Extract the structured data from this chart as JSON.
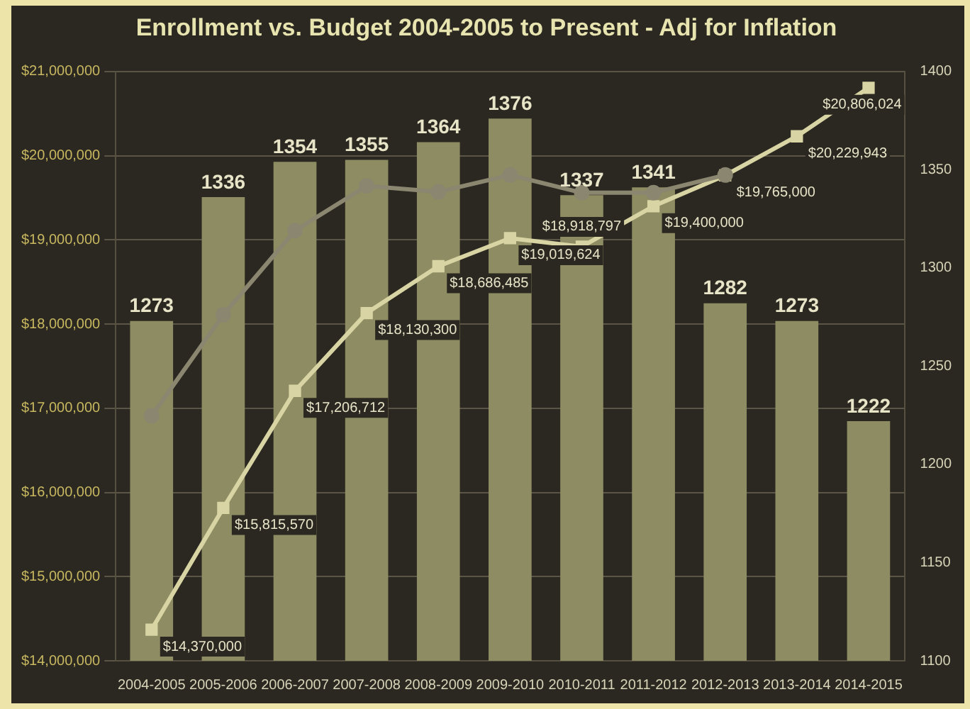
{
  "chart_data": {
    "type": "bar",
    "title": "Enrollment vs. Budget 2004-2005 to Present - Adj for Inflation",
    "categories": [
      "2004-2005",
      "2005-2006",
      "2006-2007",
      "2007-2008",
      "2008-2009",
      "2009-2010",
      "2010-2011",
      "2011-2012",
      "2012-2013",
      "2013-2014",
      "2014-2015"
    ],
    "series": [
      {
        "axis": "y2",
        "color": "#8e8c62",
        "values": [
          1273,
          1336,
          1354,
          1355,
          1364,
          1376,
          1337,
          1341,
          1282,
          1273,
          1222
        ],
        "value_labels": [
          "1273",
          "1336",
          "1354",
          "1355",
          "1364",
          "1376",
          "1337",
          "1341",
          "1282",
          "1273",
          "1222"
        ]
      },
      {
        "type": "line",
        "axis": "y",
        "color": "#8a8670",
        "marker": "circle",
        "values": [
          16910000,
          18110000,
          19110000,
          19640000,
          19570000,
          19770000,
          19560000,
          19560000,
          19770000,
          null,
          null
        ]
      },
      {
        "type": "line",
        "axis": "y",
        "color": "#d8d4a4",
        "marker": "square",
        "values": [
          14370000,
          15815570,
          17206712,
          18130300,
          18686485,
          19019624,
          18918797,
          19400000,
          19765000,
          20229943,
          20806024
        ],
        "value_labels": [
          "$14,370,000",
          "$15,815,570",
          "$17,206,712",
          "$18,130,300",
          "$18,686,485",
          "$19,019,624",
          "$18,918,797",
          "$19,400,000",
          "$19,765,000",
          "$20,229,943",
          "$20,806,024"
        ]
      }
    ],
    "ylim": [
      14000000,
      21000000
    ],
    "yticks": [
      {
        "value": 14000000,
        "label": "$14,000,000"
      },
      {
        "value": 15000000,
        "label": "$15,000,000"
      },
      {
        "value": 16000000,
        "label": "$16,000,000"
      },
      {
        "value": 17000000,
        "label": "$17,000,000"
      },
      {
        "value": 18000000,
        "label": "$18,000,000"
      },
      {
        "value": 19000000,
        "label": "$19,000,000"
      },
      {
        "value": 20000000,
        "label": "$20,000,000"
      },
      {
        "value": 21000000,
        "label": "$21,000,000"
      }
    ],
    "y2lim": [
      1100,
      1400
    ],
    "y2ticks": [
      1100,
      1150,
      1200,
      1250,
      1300,
      1350,
      1400
    ],
    "grid": "y",
    "legend": false
  }
}
